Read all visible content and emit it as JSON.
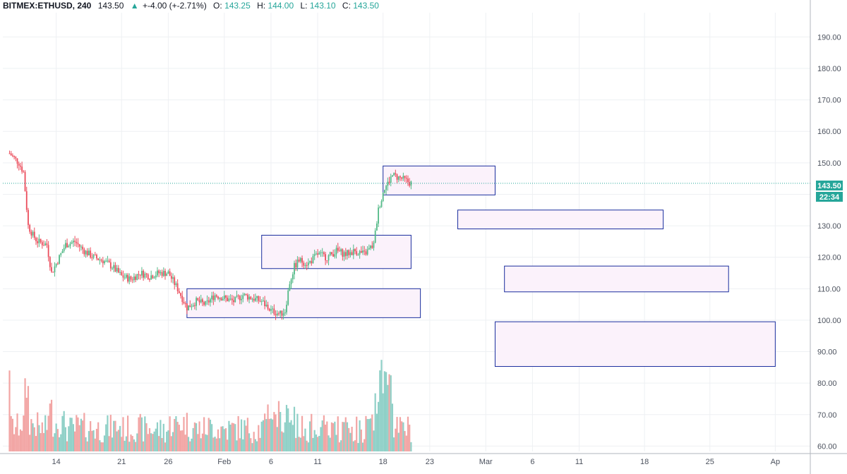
{
  "header": {
    "symbol": "BITMEX:ETHUSD, 240",
    "last": "143.50",
    "change": "+-4.00 (+-2.71%)",
    "open_label": "O:",
    "open": "143.25",
    "high_label": "H:",
    "high": "144.00",
    "low_label": "L:",
    "low": "143.10",
    "close_label": "C:",
    "close": "143.50"
  },
  "price_tag": {
    "value": "143.50",
    "countdown": "22:34"
  },
  "colors": {
    "up": "#26a69a",
    "down": "#ef5350",
    "candle_up": "#53b987",
    "candle_down": "#eb4d5c",
    "vol_up": "#8fd0c7",
    "vol_down": "#f2a5a4",
    "box_border": "#1a2e9e",
    "box_fill": "#fbf2fb",
    "grid": "#eef0f3",
    "axis_text": "#4c525e",
    "price_line": "#26a69a"
  },
  "chart_data": {
    "type": "candlestick",
    "y_axis": {
      "range": [
        58.3,
        197.7
      ],
      "ticks": [
        "60.00",
        "70.00",
        "80.00",
        "90.00",
        "100.00",
        "110.00",
        "120.00",
        "130.00",
        "140.00",
        "150.00",
        "160.00",
        "170.00",
        "180.00",
        "190.00"
      ]
    },
    "x_axis": {
      "ticks": [
        "14",
        "21",
        "26",
        "Feb",
        "6",
        "11",
        "18",
        "23",
        "Mar",
        "6",
        "11",
        "18",
        "25",
        "Ap"
      ]
    },
    "current_price": 143.5,
    "price_path": [
      [
        "Jan 9",
        153
      ],
      [
        "Jan 10",
        150
      ],
      [
        "Jan 10 12:00",
        147
      ],
      [
        "Jan 11",
        130
      ],
      [
        "Jan 11 12:00",
        127
      ],
      [
        "Jan 12",
        125
      ],
      [
        "Jan 13",
        124
      ],
      [
        "Jan 13 12:00",
        115
      ],
      [
        "Jan 14",
        118
      ],
      [
        "Jan 15",
        124
      ],
      [
        "Jan 16",
        125
      ],
      [
        "Jan 17",
        122
      ],
      [
        "Jan 18",
        120
      ],
      [
        "Jan 19",
        119
      ],
      [
        "Jan 20",
        117
      ],
      [
        "Jan 21",
        114
      ],
      [
        "Jan 22",
        113
      ],
      [
        "Jan 23",
        115
      ],
      [
        "Jan 24",
        114
      ],
      [
        "Jan 25",
        115
      ],
      [
        "Jan 26",
        115
      ],
      [
        "Jan 27",
        110
      ],
      [
        "Jan 28",
        104
      ],
      [
        "Jan 29",
        106
      ],
      [
        "Jan 30",
        105
      ],
      [
        "Jan 31",
        108
      ],
      [
        "Feb 1",
        107
      ],
      [
        "Feb 2",
        106
      ],
      [
        "Feb 3",
        108
      ],
      [
        "Feb 4",
        107
      ],
      [
        "Feb 5",
        106
      ],
      [
        "Feb 6",
        103
      ],
      [
        "Feb 7",
        102
      ],
      [
        "Feb 7 12:00",
        103
      ],
      [
        "Feb 8",
        112
      ],
      [
        "Feb 8 12:00",
        117
      ],
      [
        "Feb 9",
        119
      ],
      [
        "Feb 10",
        118
      ],
      [
        "Feb 11",
        121
      ],
      [
        "Feb 12",
        120
      ],
      [
        "Feb 13",
        122
      ],
      [
        "Feb 14",
        121
      ],
      [
        "Feb 15",
        122
      ],
      [
        "Feb 16",
        121
      ],
      [
        "Feb 17",
        124
      ],
      [
        "Feb 17 12:00",
        135
      ],
      [
        "Feb 18",
        141
      ],
      [
        "Feb 19",
        146
      ],
      [
        "Feb 20",
        145
      ],
      [
        "Feb 21",
        143.5
      ]
    ],
    "volume_scale_max": 1,
    "zones": [
      {
        "name": "zone-jan-feb-range",
        "x": [
          "Jan 28",
          "Feb 22"
        ],
        "y": [
          100.8,
          110
        ]
      },
      {
        "name": "zone-feb-consolidation",
        "x": [
          "Feb 5",
          "Feb 21"
        ],
        "y": [
          116.4,
          127
        ]
      },
      {
        "name": "zone-feb-high",
        "x": [
          "Feb 18",
          "Mar 2"
        ],
        "y": [
          139.8,
          149
        ]
      },
      {
        "name": "zone-target-130",
        "x": [
          "Feb 26",
          "Mar 20"
        ],
        "y": [
          129,
          135
        ]
      },
      {
        "name": "zone-target-110",
        "x": [
          "Mar 3",
          "Mar 27"
        ],
        "y": [
          109,
          117.2
        ]
      },
      {
        "name": "zone-target-90",
        "x": [
          "Mar 2",
          "Apr 1"
        ],
        "y": [
          85.3,
          99.5
        ]
      }
    ]
  }
}
